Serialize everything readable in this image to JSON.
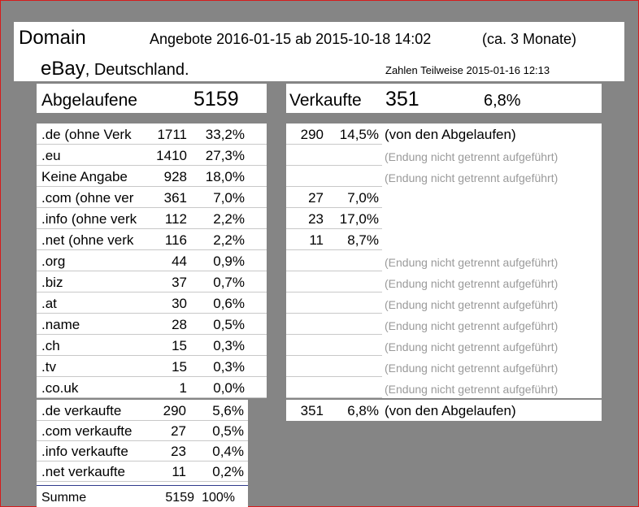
{
  "header": {
    "domain": "Domain",
    "offers": "Angebote 2016-01-15 ab 2015-10-18 14:02",
    "months": "(ca. 3 Monate)",
    "site_main": "eBay",
    "site_sub": ", Deutschland.",
    "figures": "Zahlen Teilweise 2015-01-16 12:13"
  },
  "summary": {
    "expired_label": "Abgelaufene",
    "expired_value": "5159",
    "sold_label": "Verkaufte",
    "sold_value": "351",
    "sold_pct": "6,8%"
  },
  "domains": [
    {
      "name": ".de (ohne Verk",
      "count": "1711",
      "pct": "33,2%"
    },
    {
      "name": ".eu",
      "count": "1410",
      "pct": "27,3%"
    },
    {
      "name": "Keine Angabe",
      "count": "928",
      "pct": "18,0%"
    },
    {
      "name": ".com (ohne ver",
      "count": "361",
      "pct": "7,0%"
    },
    {
      "name": ".info (ohne verk",
      "count": "112",
      "pct": "2,2%"
    },
    {
      "name": ".net (ohne verk",
      "count": "116",
      "pct": "2,2%"
    },
    {
      "name": ".org",
      "count": "44",
      "pct": "0,9%"
    },
    {
      "name": ".biz",
      "count": "37",
      "pct": "0,7%"
    },
    {
      "name": ".at",
      "count": "30",
      "pct": "0,6%"
    },
    {
      "name": ".name",
      "count": "28",
      "pct": "0,5%"
    },
    {
      "name": ".ch",
      "count": "15",
      "pct": "0,3%"
    },
    {
      "name": ".tv",
      "count": "15",
      "pct": "0,3%"
    },
    {
      "name": ".co.uk",
      "count": "1",
      "pct": "0,0%"
    }
  ],
  "sold_domains": [
    {
      "name": ".de verkaufte",
      "count": "290",
      "pct": "5,6%"
    },
    {
      "name": ".com verkaufte",
      "count": "27",
      "pct": "0,5%"
    },
    {
      "name": ".info verkaufte",
      "count": "23",
      "pct": "0,4%"
    },
    {
      "name": ".net verkaufte",
      "count": "11",
      "pct": "0,2%"
    }
  ],
  "total": {
    "label": "Summe",
    "count": "5159",
    "pct": "100%"
  },
  "sold_by_domain": [
    {
      "count": "290",
      "pct": "14,5%",
      "note": "(von den Abgelaufen)",
      "grey": false
    },
    {
      "count": "",
      "pct": "",
      "note": "(Endung nicht getrennt aufgeführt)",
      "grey": true
    },
    {
      "count": "",
      "pct": "",
      "note": "(Endung nicht getrennt aufgeführt)",
      "grey": true
    },
    {
      "count": "27",
      "pct": "7,0%",
      "note": "",
      "grey": false
    },
    {
      "count": "23",
      "pct": "17,0%",
      "note": "",
      "grey": false
    },
    {
      "count": "11",
      "pct": "8,7%",
      "note": "",
      "grey": false
    },
    {
      "count": "",
      "pct": "",
      "note": "(Endung nicht getrennt aufgeführt)",
      "grey": true
    },
    {
      "count": "",
      "pct": "",
      "note": "(Endung nicht getrennt aufgeführt)",
      "grey": true
    },
    {
      "count": "",
      "pct": "",
      "note": "(Endung nicht getrennt aufgeführt)",
      "grey": true
    },
    {
      "count": "",
      "pct": "",
      "note": "(Endung nicht getrennt aufgeführt)",
      "grey": true
    },
    {
      "count": "",
      "pct": "",
      "note": "(Endung nicht getrennt aufgeführt)",
      "grey": true
    },
    {
      "count": "",
      "pct": "",
      "note": "(Endung nicht getrennt aufgeführt)",
      "grey": true
    },
    {
      "count": "",
      "pct": "",
      "note": "(Endung nicht getrennt aufgeführt)",
      "grey": true
    }
  ],
  "sold_total": {
    "count": "351",
    "pct": "6,8%",
    "note": "(von den Abgelaufen)"
  }
}
